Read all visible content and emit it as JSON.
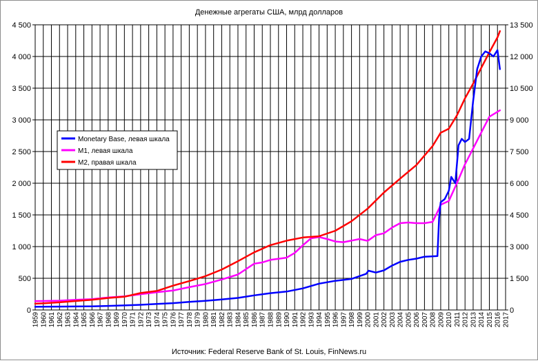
{
  "chart_data": {
    "type": "line",
    "title": "Денежные агрегаты США, млрд долларов",
    "source": "Источник: Federal Reserve Bank of St. Louis, FinNews.ru",
    "grid": true,
    "legend_position": "left",
    "x_ticks": [
      "1959",
      "1960",
      "1961",
      "1962",
      "1963",
      "1964",
      "1965",
      "1966",
      "1967",
      "1968",
      "1969",
      "1970",
      "1971",
      "1972",
      "1973",
      "1974",
      "1975",
      "1976",
      "1977",
      "1978",
      "1979",
      "1980",
      "1981",
      "1982",
      "1983",
      "1984",
      "1985",
      "1986",
      "1987",
      "1988",
      "1989",
      "1990",
      "1991",
      "1992",
      "1993",
      "1994",
      "1995",
      "1996",
      "1997",
      "1998",
      "1999",
      "2000",
      "2001",
      "2002",
      "2003",
      "2004",
      "2005",
      "2006",
      "2007",
      "2008",
      "2009",
      "2010",
      "2011",
      "2012",
      "2013",
      "2014",
      "2015",
      "2016",
      "2017"
    ],
    "y_left": {
      "ylim": [
        0,
        4500
      ],
      "ticks": [
        0,
        500,
        1000,
        1500,
        2000,
        2500,
        3000,
        3500,
        4000,
        4500
      ],
      "tick_labels": [
        "0",
        "500",
        "1 000",
        "1 500",
        "2 000",
        "2 500",
        "3 000",
        "3 500",
        "4 000",
        "4 500"
      ]
    },
    "y_right": {
      "ylim": [
        0,
        13500
      ],
      "ticks": [
        0,
        1500,
        3000,
        4500,
        6000,
        7500,
        9000,
        10500,
        12000,
        13500
      ],
      "tick_labels": [
        "0",
        "1 500",
        "3 000",
        "4 500",
        "6 000",
        "7 500",
        "9 000",
        "10 500",
        "12 000",
        "13 500"
      ]
    },
    "series": [
      {
        "name": "Monetary Base, левая шкала",
        "axis": "left",
        "color": "#0000ff",
        "x": [
          1959,
          1960,
          1962,
          1964,
          1966,
          1968,
          1970,
          1972,
          1974,
          1976,
          1978,
          1980,
          1982,
          1984,
          1986,
          1988,
          1990,
          1992,
          1994,
          1996,
          1998,
          1999.8,
          2000.1,
          2001,
          2002,
          2003,
          2004,
          2005,
          2006,
          2007,
          2008.6,
          2008.8,
          2009,
          2009.5,
          2010,
          2010.3,
          2010.8,
          2011.2,
          2011.6,
          2012,
          2012.5,
          2013,
          2013.5,
          2014,
          2014.5,
          2015,
          2015.5,
          2016,
          2016.3
        ],
        "y": [
          50,
          51,
          53,
          55,
          58,
          64,
          72,
          82,
          95,
          108,
          128,
          145,
          165,
          190,
          230,
          265,
          290,
          340,
          415,
          460,
          490,
          570,
          620,
          590,
          625,
          700,
          760,
          790,
          810,
          840,
          850,
          1450,
          1700,
          1750,
          1880,
          2100,
          2000,
          2600,
          2700,
          2650,
          2700,
          3300,
          3800,
          4000,
          4080,
          4050,
          4000,
          4100,
          3800
        ]
      },
      {
        "name": "M1, левая шкала",
        "axis": "left",
        "color": "#ff00ff",
        "x": [
          1959,
          1960,
          1962,
          1964,
          1966,
          1968,
          1970,
          1972,
          1974,
          1976,
          1978,
          1980,
          1982,
          1984,
          1986,
          1987,
          1988,
          1990,
          1991,
          1992,
          1993,
          1994,
          1995,
          1996,
          1997,
          1998,
          1999,
          2000,
          2001,
          2002,
          2003,
          2004,
          2005,
          2006,
          2007,
          2008,
          2008.8,
          2009,
          2010,
          2011,
          2012,
          2013,
          2014,
          2015,
          2016.3
        ],
        "y": [
          140,
          141,
          147,
          160,
          171,
          197,
          215,
          249,
          280,
          307,
          360,
          410,
          480,
          560,
          730,
          750,
          790,
          825,
          900,
          1020,
          1130,
          1150,
          1120,
          1080,
          1070,
          1095,
          1120,
          1090,
          1180,
          1210,
          1300,
          1370,
          1380,
          1370,
          1370,
          1390,
          1600,
          1660,
          1720,
          2000,
          2300,
          2550,
          2800,
          3050,
          3150
        ]
      },
      {
        "name": "M2, правая шкала",
        "axis": "right",
        "color": "#ff0000",
        "x": [
          1959,
          1960,
          1962,
          1964,
          1966,
          1968,
          1970,
          1972,
          1974,
          1976,
          1978,
          1980,
          1982,
          1984,
          1986,
          1988,
          1990,
          1992,
          1994,
          1996,
          1998,
          2000,
          2002,
          2004,
          2006,
          2008,
          2009,
          2010,
          2011,
          2012,
          2013,
          2014,
          2015,
          2016,
          2016.3
        ],
        "y": [
          297,
          312,
          362,
          425,
          480,
          566,
          627,
          802,
          901,
          1152,
          1367,
          1600,
          1910,
          2310,
          2730,
          3070,
          3280,
          3430,
          3490,
          3750,
          4200,
          4800,
          5560,
          6220,
          6860,
          7760,
          8390,
          8580,
          9210,
          10020,
          10720,
          11460,
          12200,
          12900,
          13200
        ]
      }
    ]
  }
}
